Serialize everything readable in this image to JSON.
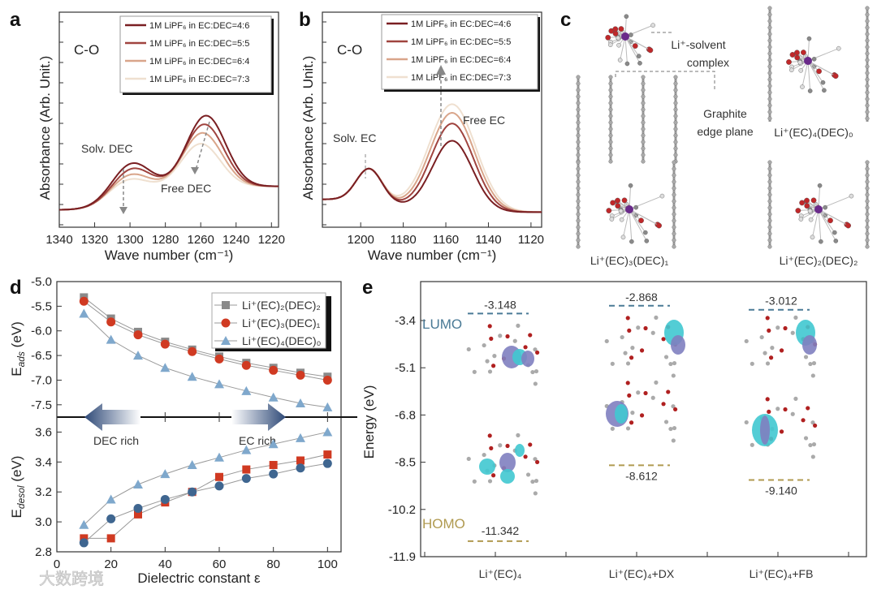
{
  "panels": {
    "a": "a",
    "b": "b",
    "c": "c",
    "d": "d",
    "e": "e"
  },
  "chart_data": [
    {
      "id": "a",
      "type": "line",
      "label": "C-O",
      "xlabel": "Wave number (cm⁻¹)",
      "ylabel": "Absorbance (Arb. Unit.)",
      "xlim": [
        1340,
        1216
      ],
      "ylim": [
        0,
        1
      ],
      "xticks": [
        1340,
        1320,
        1300,
        1280,
        1260,
        1240,
        1220
      ],
      "annotations": [
        "Solv. DEC",
        "Free DEC"
      ],
      "baseline": [
        0.08,
        0.19
      ],
      "series": [
        {
          "name": "1M LiPF₆ in EC:DEC=4:6",
          "color": "#7a1f22",
          "peaks": [
            {
              "c": 1300,
              "h": 0.17,
              "w": 11
            },
            {
              "c": 1257,
              "h": 0.33,
              "w": 11
            }
          ]
        },
        {
          "name": "1M LiPF₆ in EC:DEC=5:5",
          "color": "#a0443f",
          "peaks": [
            {
              "c": 1300,
              "h": 0.145,
              "w": 11
            },
            {
              "c": 1258,
              "h": 0.29,
              "w": 11
            }
          ]
        },
        {
          "name": "1M LiPF₆ in EC:DEC=6:4",
          "color": "#d9a58a",
          "peaks": [
            {
              "c": 1301,
              "h": 0.12,
              "w": 11
            },
            {
              "c": 1259,
              "h": 0.25,
              "w": 11
            }
          ]
        },
        {
          "name": "1M LiPF₆ in EC:DEC=7:3",
          "color": "#efe0d0",
          "peaks": [
            {
              "c": 1302,
              "h": 0.1,
              "w": 11
            },
            {
              "c": 1260,
              "h": 0.2,
              "w": 11
            }
          ]
        }
      ]
    },
    {
      "id": "b",
      "type": "line",
      "label": "C-O",
      "xlabel": "Wave number (cm⁻¹)",
      "ylabel": "Absorbance (Arb. Unit.)",
      "xlim": [
        1218,
        1115
      ],
      "ylim": [
        0,
        1
      ],
      "xticks": [
        1200,
        1180,
        1160,
        1140,
        1120
      ],
      "annotations": [
        "Solv. EC",
        "Free EC"
      ],
      "baseline": [
        0.13,
        0.07
      ],
      "series": [
        {
          "name": "1M LiPF₆ in EC:DEC=4:6",
          "color": "#7a1f22",
          "peaks": [
            {
              "c": 1196,
              "h": 0.15,
              "w": 6
            },
            {
              "c": 1157,
              "h": 0.33,
              "w": 9.5
            }
          ]
        },
        {
          "name": "1M LiPF₆ in EC:DEC=5:5",
          "color": "#a0443f",
          "peaks": [
            {
              "c": 1196,
              "h": 0.15,
              "w": 6
            },
            {
              "c": 1157,
              "h": 0.41,
              "w": 10
            }
          ]
        },
        {
          "name": "1M LiPF₆ in EC:DEC=6:4",
          "color": "#d9a58a",
          "peaks": [
            {
              "c": 1196,
              "h": 0.15,
              "w": 6
            },
            {
              "c": 1157,
              "h": 0.46,
              "w": 10.5
            }
          ]
        },
        {
          "name": "1M LiPF₆ in EC:DEC=7:3",
          "color": "#efe0d0",
          "peaks": [
            {
              "c": 1196,
              "h": 0.15,
              "w": 6
            },
            {
              "c": 1157,
              "h": 0.5,
              "w": 11
            }
          ]
        }
      ]
    },
    {
      "id": "d",
      "type": "line",
      "xlabel": "Dielectric constant ε",
      "ylabel_top": {
        "main": "E",
        "sub": "ads",
        "unit": " (eV)"
      },
      "ylabel_bottom": {
        "main": "E",
        "sub": "desol",
        "unit": " (eV)"
      },
      "xlim": [
        0,
        105
      ],
      "xticks": [
        0,
        20,
        40,
        60,
        80,
        100
      ],
      "ylim_top": [
        -7.75,
        -5.0
      ],
      "yticks_top": [
        "-5.0",
        "-5.5",
        "-6.0",
        "-6.5",
        "-7.0",
        "-7.5"
      ],
      "ylim_bottom": [
        2.8,
        3.7
      ],
      "yticks_bottom": [
        "2.8",
        "3.0",
        "3.2",
        "3.4",
        "3.6"
      ],
      "arrows": [
        "DEC rich",
        "EC rich"
      ],
      "x": [
        10,
        20,
        30,
        40,
        50,
        60,
        70,
        80,
        90,
        100
      ],
      "series_top": [
        {
          "name": "Li⁺(EC)₂(DEC)₂",
          "marker": "square",
          "color": "#8a8a8a",
          "values": [
            -5.32,
            -5.75,
            -6.02,
            -6.22,
            -6.38,
            -6.52,
            -6.65,
            -6.75,
            -6.85,
            -6.93
          ]
        },
        {
          "name": "Li⁺(EC)₃(DEC)₁",
          "marker": "circle",
          "color": "#d03a22",
          "values": [
            -5.4,
            -5.82,
            -6.08,
            -6.27,
            -6.42,
            -6.57,
            -6.7,
            -6.8,
            -6.9,
            -7.0
          ]
        },
        {
          "name": "Li⁺(EC)₄(DEC)₀",
          "marker": "triangle",
          "color": "#7fa8cc",
          "values": [
            -5.65,
            -6.18,
            -6.5,
            -6.75,
            -6.93,
            -7.08,
            -7.22,
            -7.35,
            -7.47,
            -7.55
          ]
        }
      ],
      "series_bottom": [
        {
          "name": "Li⁺(EC)₂(DEC)₂",
          "marker": "square",
          "color": "#d03a22",
          "values": [
            2.89,
            2.89,
            3.05,
            3.13,
            3.2,
            3.3,
            3.35,
            3.38,
            3.41,
            3.45
          ]
        },
        {
          "name": "Li⁺(EC)₃(DEC)₁",
          "marker": "circle",
          "color": "#3f6690",
          "values": [
            2.86,
            3.02,
            3.09,
            3.15,
            3.2,
            3.24,
            3.29,
            3.32,
            3.36,
            3.39
          ]
        },
        {
          "name": "Li⁺(EC)₄(DEC)₀",
          "marker": "triangle",
          "color": "#7fa8cc",
          "values": [
            2.98,
            3.15,
            3.25,
            3.32,
            3.38,
            3.43,
            3.48,
            3.52,
            3.56,
            3.6
          ]
        }
      ]
    },
    {
      "id": "e",
      "type": "scatter",
      "ylabel": "Energy (eV)",
      "ylim": [
        -11.9,
        -2.3
      ],
      "yticks": [
        "-3.4",
        "-5.1",
        "-6.8",
        "-8.5",
        "-10.2",
        "-11.9"
      ],
      "categories": [
        "Li⁺(EC)₄",
        "Li⁺(EC)₄+DX",
        "Li⁺(EC)₄+FB"
      ],
      "lumo_label": "LUMO",
      "homo_label": "HOMO",
      "lumo_color": "#4a7a96",
      "homo_color": "#b09a50",
      "lumo": [
        -3.148,
        -2.868,
        -3.012
      ],
      "homo": [
        -11.342,
        -8.612,
        -9.14
      ],
      "lumo_text": [
        "-3.148",
        "-2.868",
        "-3.012"
      ],
      "homo_text": [
        "-11.342",
        "-8.612",
        "-9.140"
      ]
    }
  ],
  "panel_c": {
    "complex_label_1": "Li⁺-solvent",
    "complex_label_2": "complex",
    "graphite_label_1": "Graphite",
    "graphite_label_2": "edge plane",
    "structures": [
      "Li⁺(EC)₄(DEC)₀",
      "Li⁺(EC)₃(DEC)₁",
      "Li⁺(EC)₂(DEC)₂"
    ]
  },
  "watermark": "大数跨境"
}
